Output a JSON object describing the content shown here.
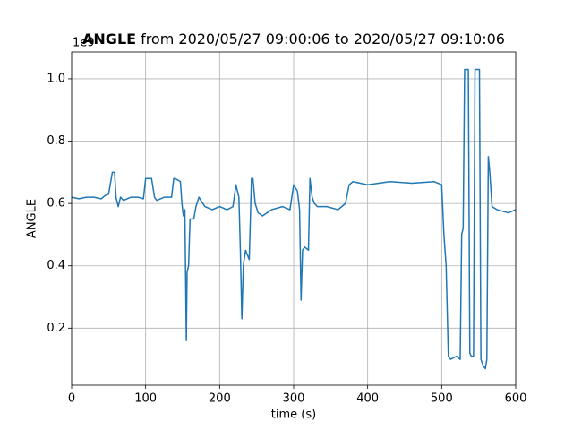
{
  "chart_data": {
    "type": "line",
    "title": {
      "bold": "ANGLE",
      "rest": "from 2020/05/27 09:00:06 to 2020/05/27 09:10:06"
    },
    "x_label": "time (s)",
    "y_label": "ANGLE",
    "y_offset": "1e9",
    "color": "#1f77b4",
    "grid": true,
    "xlim": [
      0,
      600
    ],
    "xticks": [
      0,
      100,
      200,
      300,
      400,
      500,
      600
    ],
    "ylim": [
      0.017,
      1.086
    ],
    "yticks": [
      0.2,
      0.4,
      0.6,
      0.8,
      {
        "value": 1,
        "label": "1.0"
      }
    ],
    "x": [
      0,
      10,
      20,
      30,
      40,
      45,
      50,
      55,
      58,
      60,
      63,
      66,
      70,
      80,
      90,
      97,
      100,
      108,
      112,
      115,
      125,
      135,
      138,
      140,
      147,
      149,
      151,
      153,
      155,
      156,
      158,
      160,
      165,
      168,
      172,
      180,
      190,
      200,
      210,
      218,
      222,
      226,
      228,
      230,
      232,
      235,
      240,
      243,
      245,
      248,
      252,
      258,
      270,
      285,
      295,
      300,
      305,
      308,
      310,
      312,
      315,
      320,
      322,
      325,
      328,
      332,
      345,
      360,
      370,
      375,
      380,
      400,
      430,
      460,
      490,
      500,
      503,
      506,
      509,
      512,
      520,
      525,
      527,
      529,
      531,
      533,
      536,
      538,
      540,
      543,
      545,
      548,
      551,
      553,
      556,
      559,
      561,
      563,
      565,
      568,
      575,
      590,
      600
    ],
    "values": [
      0.62,
      0.615,
      0.62,
      0.62,
      0.615,
      0.625,
      0.63,
      0.7,
      0.7,
      0.62,
      0.59,
      0.62,
      0.61,
      0.62,
      0.62,
      0.615,
      0.68,
      0.68,
      0.62,
      0.61,
      0.62,
      0.62,
      0.68,
      0.68,
      0.67,
      0.6,
      0.56,
      0.58,
      0.16,
      0.38,
      0.4,
      0.55,
      0.55,
      0.59,
      0.62,
      0.59,
      0.58,
      0.59,
      0.58,
      0.59,
      0.66,
      0.62,
      0.45,
      0.23,
      0.4,
      0.45,
      0.42,
      0.68,
      0.68,
      0.6,
      0.57,
      0.56,
      0.58,
      0.59,
      0.58,
      0.66,
      0.64,
      0.58,
      0.29,
      0.45,
      0.46,
      0.45,
      0.68,
      0.62,
      0.6,
      0.59,
      0.59,
      0.58,
      0.6,
      0.66,
      0.67,
      0.66,
      0.67,
      0.665,
      0.67,
      0.66,
      0.5,
      0.4,
      0.11,
      0.1,
      0.11,
      0.1,
      0.5,
      0.52,
      1.03,
      1.03,
      1.03,
      0.12,
      0.11,
      0.11,
      1.03,
      1.03,
      1.03,
      0.1,
      0.08,
      0.07,
      0.1,
      0.75,
      0.7,
      0.59,
      0.58,
      0.57,
      0.58
    ]
  }
}
